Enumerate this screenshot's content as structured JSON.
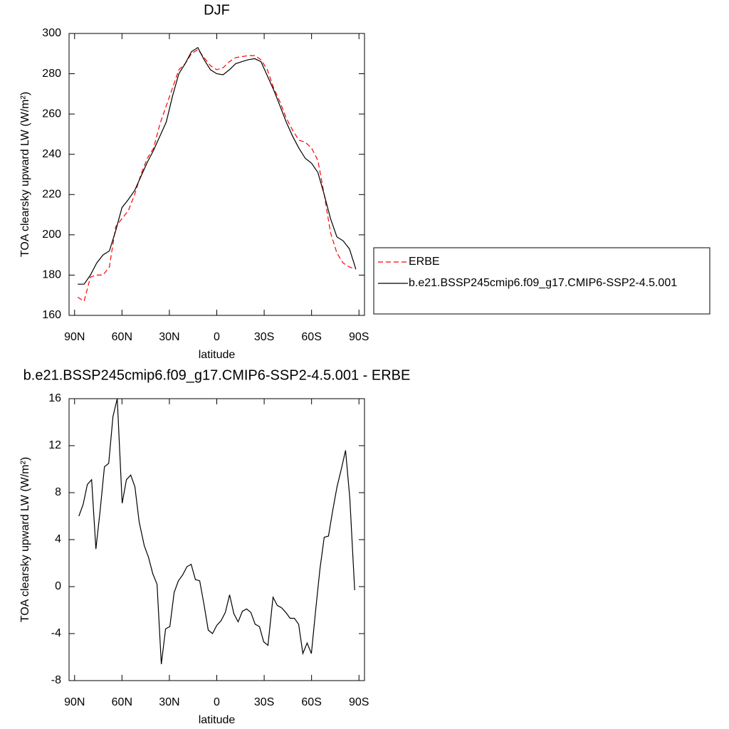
{
  "chart_data": [
    {
      "type": "line",
      "title": "DJF",
      "xlabel": "latitude",
      "ylabel": "TOA clearsky upward LW (W/m²)",
      "x": [
        88,
        84,
        80,
        76,
        72,
        68,
        64,
        60,
        56,
        52,
        48,
        44,
        40,
        36,
        32,
        28,
        24,
        20,
        16,
        12,
        8,
        4,
        0,
        -4,
        -8,
        -12,
        -16,
        -20,
        -24,
        -28,
        -32,
        -36,
        -40,
        -44,
        -48,
        -52,
        -56,
        -60,
        -64,
        -68,
        -72,
        -76,
        -80,
        -84,
        -88
      ],
      "series": [
        {
          "name": "ERBE",
          "color": "#ff0000",
          "linestyle": "dashed",
          "values": [
            169,
            167,
            179,
            180,
            180,
            184,
            204,
            208,
            212,
            220,
            230,
            238,
            243,
            255,
            264,
            273,
            282,
            285,
            290,
            292,
            288,
            284,
            282,
            283,
            286,
            288,
            288.5,
            289,
            289,
            287,
            282,
            273,
            266,
            258,
            252,
            247,
            246,
            243,
            237,
            220,
            201,
            191,
            186,
            184,
            183
          ]
        },
        {
          "name": "b.e21.BSSP245cmip6.f09_g17.CMIP6-SSP2-4.5.001",
          "color": "#000000",
          "linestyle": "solid",
          "values": [
            175.5,
            175.5,
            180,
            186,
            190,
            192,
            202,
            213.5,
            217.5,
            222,
            229,
            236,
            242,
            249,
            256,
            269,
            280,
            285,
            291,
            293,
            287,
            282,
            280,
            279.5,
            282,
            285,
            286,
            287,
            287.5,
            286,
            279,
            272,
            264,
            256,
            249,
            243,
            238,
            235.5,
            231,
            220,
            208,
            199,
            197,
            193,
            183
          ]
        }
      ],
      "xlim": [
        93.5,
        -93.5
      ],
      "ylim": [
        160,
        300
      ],
      "xticks": [
        {
          "value": 90,
          "label": "90N"
        },
        {
          "value": 60,
          "label": "60N"
        },
        {
          "value": 30,
          "label": "30N"
        },
        0,
        {
          "value": -30,
          "label": "30S"
        },
        {
          "value": -60,
          "label": "60S"
        },
        {
          "value": -90,
          "label": "90S"
        }
      ],
      "yticks": [
        160,
        180,
        200,
        220,
        240,
        260,
        280,
        300
      ],
      "legend": "right"
    },
    {
      "type": "line",
      "title": "b.e21.BSSP245cmip6.f09_g17.CMIP6-SSP2-4.5.001 - ERBE",
      "xlabel": "latitude",
      "ylabel": "TOA clearsky upward LW (W/m²)",
      "x": [
        87.3,
        84.6,
        81.9,
        79.2,
        76.5,
        73.8,
        71.1,
        68.4,
        65.7,
        63.0,
        59.9,
        57.2,
        54.5,
        51.8,
        49.1,
        45.9,
        43.2,
        40.5,
        37.8,
        35.1,
        32.4,
        29.7,
        27.0,
        24.3,
        21.6,
        18.9,
        16.2,
        13.5,
        10.8,
        8.1,
        5.4,
        2.7,
        0,
        -2.7,
        -5.4,
        -8.1,
        -10.8,
        -13.5,
        -16.2,
        -18.9,
        -21.6,
        -24.3,
        -27.0,
        -29.7,
        -32.4,
        -35.6,
        -38.3,
        -41.0,
        -43.7,
        -46.4,
        -49.1,
        -51.8,
        -54.5,
        -57.2,
        -59.9,
        -62.6,
        -65.3,
        -68.0,
        -70.7,
        -73.4,
        -76.1,
        -78.8,
        -81.5,
        -84.2,
        -87.3
      ],
      "color": "#000000",
      "values": [
        6,
        7,
        8.7,
        9.1,
        3.2,
        6.5,
        10.2,
        10.5,
        14.5,
        16,
        7.1,
        9.1,
        9.5,
        8.5,
        5.5,
        3.5,
        2.5,
        1.1,
        0.2,
        -6.6,
        -3.6,
        -3.4,
        -0.5,
        0.5,
        1,
        1.7,
        1.9,
        0.6,
        0.5,
        -1.5,
        -3.7,
        -4,
        -3.3,
        -2.9,
        -2.2,
        -0.7,
        -2.3,
        -3,
        -2.1,
        -1.9,
        -2.2,
        -3.2,
        -3.4,
        -4.7,
        -5,
        -0.9,
        -1.6,
        -1.8,
        -2.2,
        -2.7,
        -2.7,
        -3.2,
        -5.7,
        -4.8,
        -5.7,
        -2,
        1.5,
        4.2,
        4.3,
        6.5,
        8.5,
        10,
        11.6,
        7.5,
        -0.3
      ],
      "xlim": [
        93.5,
        -93.5
      ],
      "ylim": [
        -8,
        16
      ],
      "xticks": [
        {
          "value": 90,
          "label": "90N"
        },
        {
          "value": 60,
          "label": "60N"
        },
        {
          "value": 30,
          "label": "30N"
        },
        0,
        {
          "value": -30,
          "label": "30S"
        },
        {
          "value": -60,
          "label": "60S"
        },
        {
          "value": -90,
          "label": "90S"
        }
      ],
      "yticks": [
        -8,
        -4,
        0,
        4,
        8,
        12,
        16
      ]
    }
  ]
}
